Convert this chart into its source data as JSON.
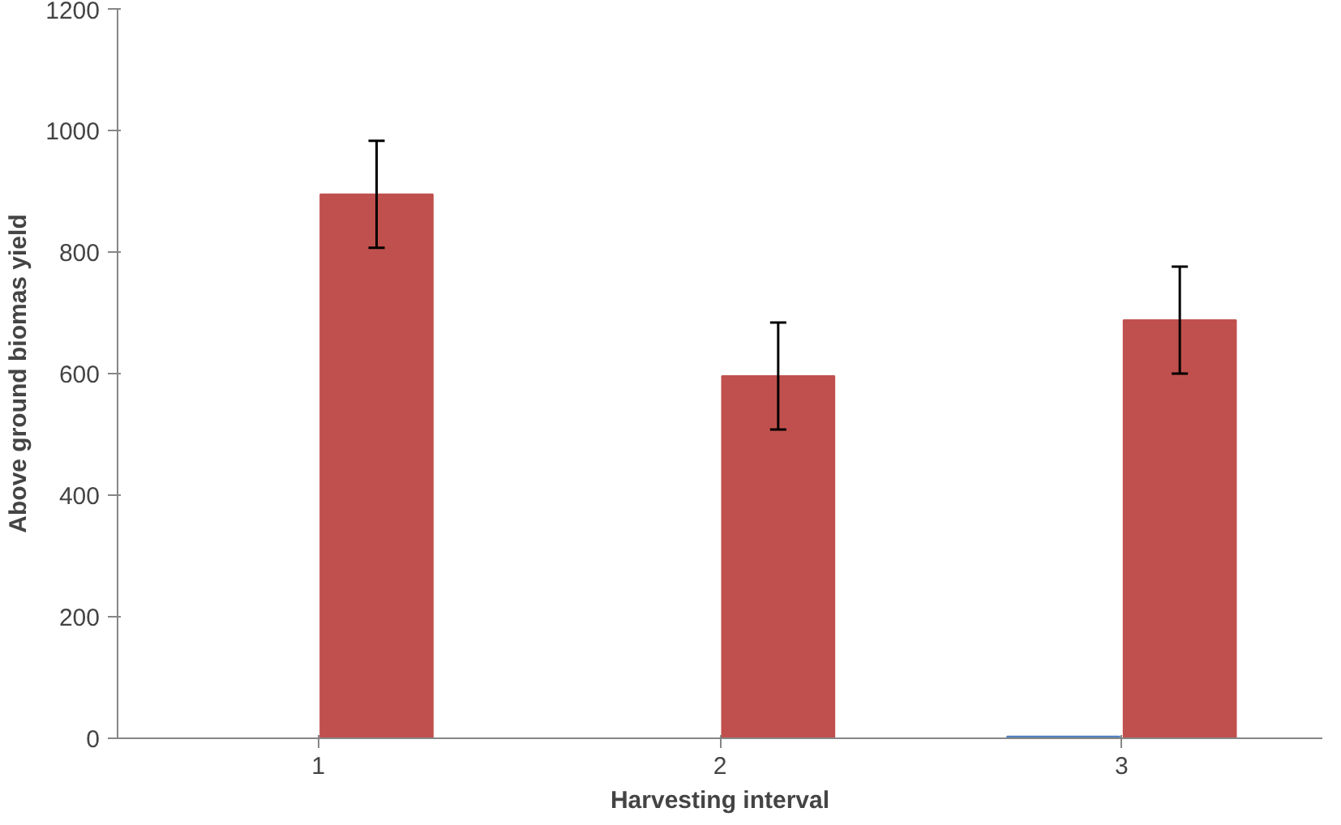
{
  "chart_data": {
    "type": "bar",
    "xlabel": "Harvesting interval",
    "ylabel": "Above ground biomas yield",
    "categories": [
      "1",
      "2",
      "3"
    ],
    "series": [
      {
        "color": "#4f81bd",
        "values": [
          null,
          null,
          3
        ]
      },
      {
        "color": "#c0504d",
        "values": [
          895,
          596,
          688
        ],
        "errors": [
          88,
          88,
          88
        ]
      }
    ],
    "ylim": [
      0,
      1200
    ],
    "yticks": [
      0,
      200,
      400,
      600,
      800,
      1000,
      1200
    ],
    "grid": false
  }
}
